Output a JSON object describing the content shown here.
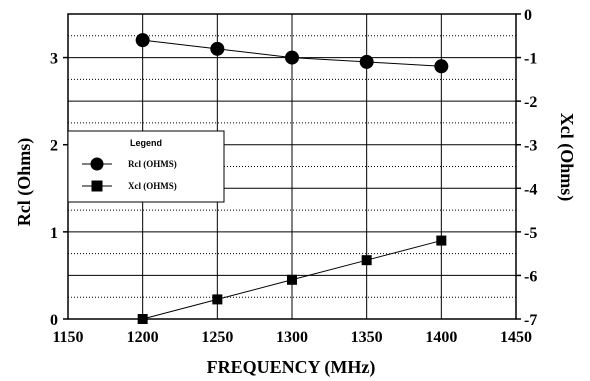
{
  "chart_data": {
    "type": "line",
    "title": "",
    "xlabel": "FREQUENCY (MHz)",
    "ylabel_left": "Rcl (Ohms)",
    "ylabel_right": "Xcl (Ohms)",
    "xlim": [
      1150,
      1450
    ],
    "x_ticks": [
      1150,
      1200,
      1250,
      1300,
      1350,
      1400,
      1450
    ],
    "ylim_left": [
      0,
      3.5
    ],
    "y_ticks_left": [
      0,
      1,
      2,
      3
    ],
    "ylim_right": [
      -7,
      0
    ],
    "y_ticks_right": [
      0,
      -1,
      -2,
      -3,
      -4,
      -5,
      -6,
      -7
    ],
    "grid": true,
    "legend_placement": "left-middle",
    "legend_title": "Legend",
    "x": [
      1200,
      1250,
      1300,
      1350,
      1400
    ],
    "series": [
      {
        "name": "Rcl (OHMS)",
        "axis": "left",
        "marker": "circle",
        "values": [
          3.2,
          3.1,
          3.0,
          2.95,
          2.9
        ]
      },
      {
        "name": "Xcl (OHMS)",
        "axis": "right",
        "marker": "square",
        "values": [
          -7.0,
          -6.55,
          -6.1,
          -5.65,
          -5.2
        ]
      }
    ]
  }
}
